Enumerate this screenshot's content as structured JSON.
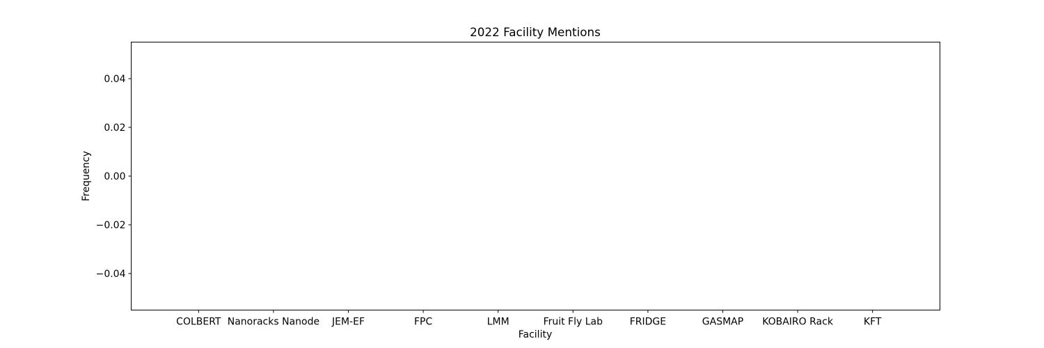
{
  "chart_data": {
    "type": "bar",
    "title": "2022 Facility Mentions",
    "xlabel": "Facility",
    "ylabel": "Frequency",
    "categories": [
      "COLBERT",
      "Nanoracks Nanode",
      "JEM-EF",
      "FPC",
      "LMM",
      "Fruit Fly Lab",
      "FRIDGE",
      "GASMAP",
      "KOBAIRO Rack",
      "KFT"
    ],
    "values": [
      0,
      0,
      0,
      0,
      0,
      0,
      0,
      0,
      0,
      0
    ],
    "ylim": [
      -0.055,
      0.055
    ],
    "yticks": [
      -0.04,
      -0.02,
      0.0,
      0.02,
      0.04
    ],
    "ytick_labels": [
      "−0.04",
      "−0.02",
      "0.00",
      "0.02",
      "0.04"
    ],
    "grid": false,
    "legend": "none"
  }
}
